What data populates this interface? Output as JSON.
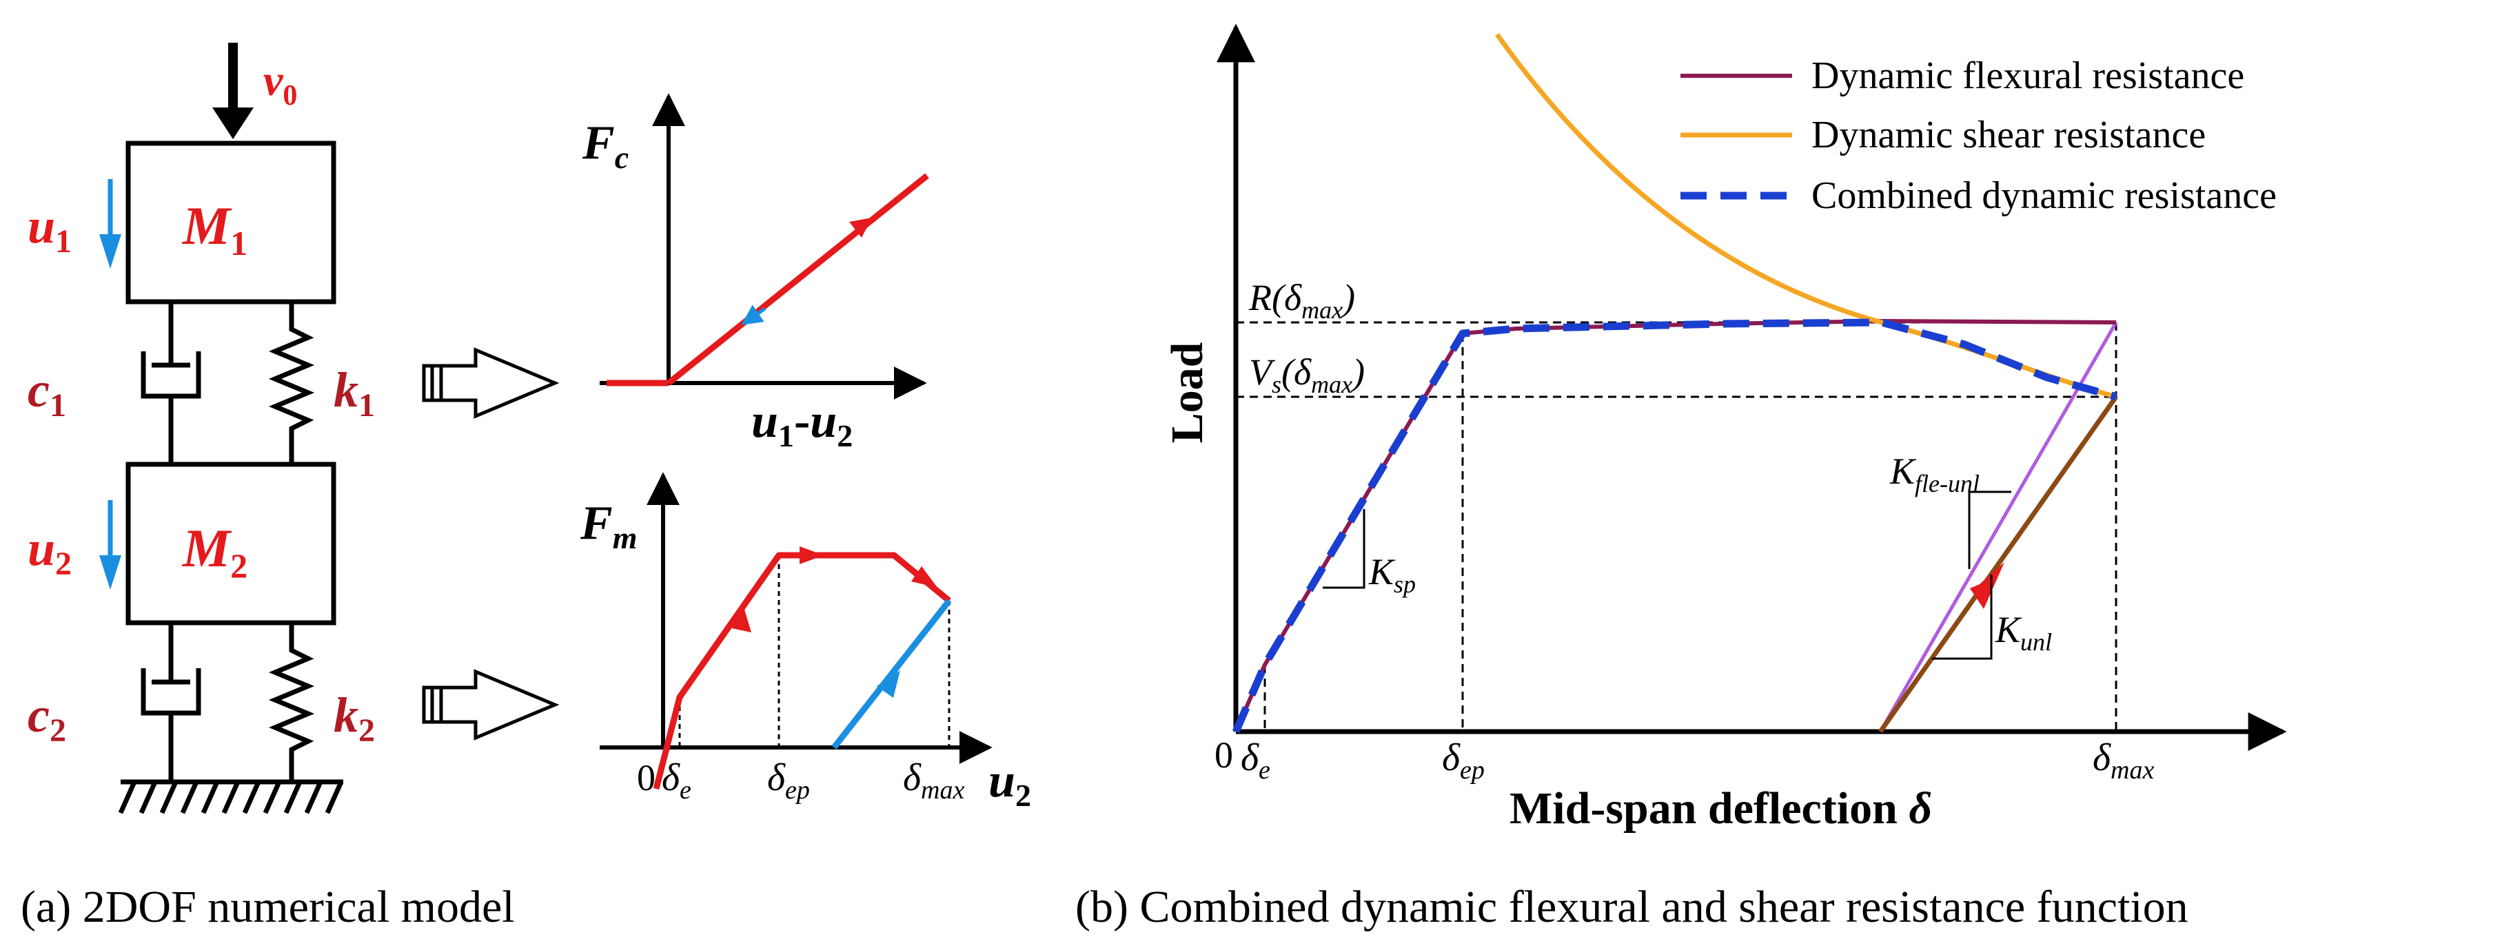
{
  "colors": {
    "red": "#e41a1c",
    "blue": "#1a8fe0",
    "dark_red": "#b01c24",
    "flexural": "#8b1a52",
    "shear": "#f5a623",
    "combined": "#1a3fd0",
    "unload_light": "#b05be0",
    "unload_brown": "#8b4a14",
    "black": "#000000"
  },
  "panel_a": {
    "v0": {
      "sym": "v",
      "sub": "0"
    },
    "masses": [
      {
        "sym": "M",
        "sub": "1"
      },
      {
        "sym": "M",
        "sub": "2"
      }
    ],
    "displacements": [
      {
        "sym": "u",
        "sub": "1"
      },
      {
        "sym": "u",
        "sub": "2"
      }
    ],
    "dampers": [
      {
        "sym": "c",
        "sub": "1"
      },
      {
        "sym": "c",
        "sub": "2"
      }
    ],
    "springs": [
      {
        "sym": "k",
        "sub": "1"
      },
      {
        "sym": "k",
        "sub": "2"
      }
    ],
    "caption": "(a) 2DOF numerical model"
  },
  "chart_fc": {
    "y_label": {
      "sym": "F",
      "sub": "c"
    },
    "x_label": {
      "a": "u",
      "a_sub": "1",
      "dash": "-",
      "b": "u",
      "b_sub": "2"
    }
  },
  "chart_fm": {
    "y_label": {
      "sym": "F",
      "sub": "m"
    },
    "x_label": {
      "sym": "u",
      "sub": "2"
    },
    "origin": "0",
    "ticks": [
      {
        "sym": "δ",
        "sub": "e"
      },
      {
        "sym": "δ",
        "sub": "ep"
      },
      {
        "sym": "δ",
        "sub": "max"
      }
    ]
  },
  "chart_b": {
    "y_label": "Load",
    "x_label": {
      "text": "Mid-span deflection ",
      "sym": "δ"
    },
    "origin": "0",
    "legend": [
      {
        "label": "Dynamic flexural resistance",
        "style": "solid-flexural"
      },
      {
        "label": "Dynamic shear resistance",
        "style": "solid-shear"
      },
      {
        "label": "Combined dynamic resistance",
        "style": "dashed-combined"
      }
    ],
    "ticks": [
      {
        "sym": "δ",
        "sub": "e"
      },
      {
        "sym": "δ",
        "sub": "ep"
      },
      {
        "sym": "δ",
        "sub": "max"
      }
    ],
    "level_labels": [
      {
        "pre": "R(",
        "sym": "δ",
        "sub": "max",
        "post": ")"
      },
      {
        "sym": "V",
        "sub": "s",
        "pre2": "(",
        "sym2": "δ",
        "sub2": "max",
        "post": ")"
      }
    ],
    "stiffness_labels": [
      {
        "sym": "K",
        "sub": "sp"
      },
      {
        "sym": "K",
        "sub": "fle-unl"
      },
      {
        "sym": "K",
        "sub": "unl"
      }
    ],
    "caption": "(b) Combined dynamic flexural and shear resistance function"
  }
}
